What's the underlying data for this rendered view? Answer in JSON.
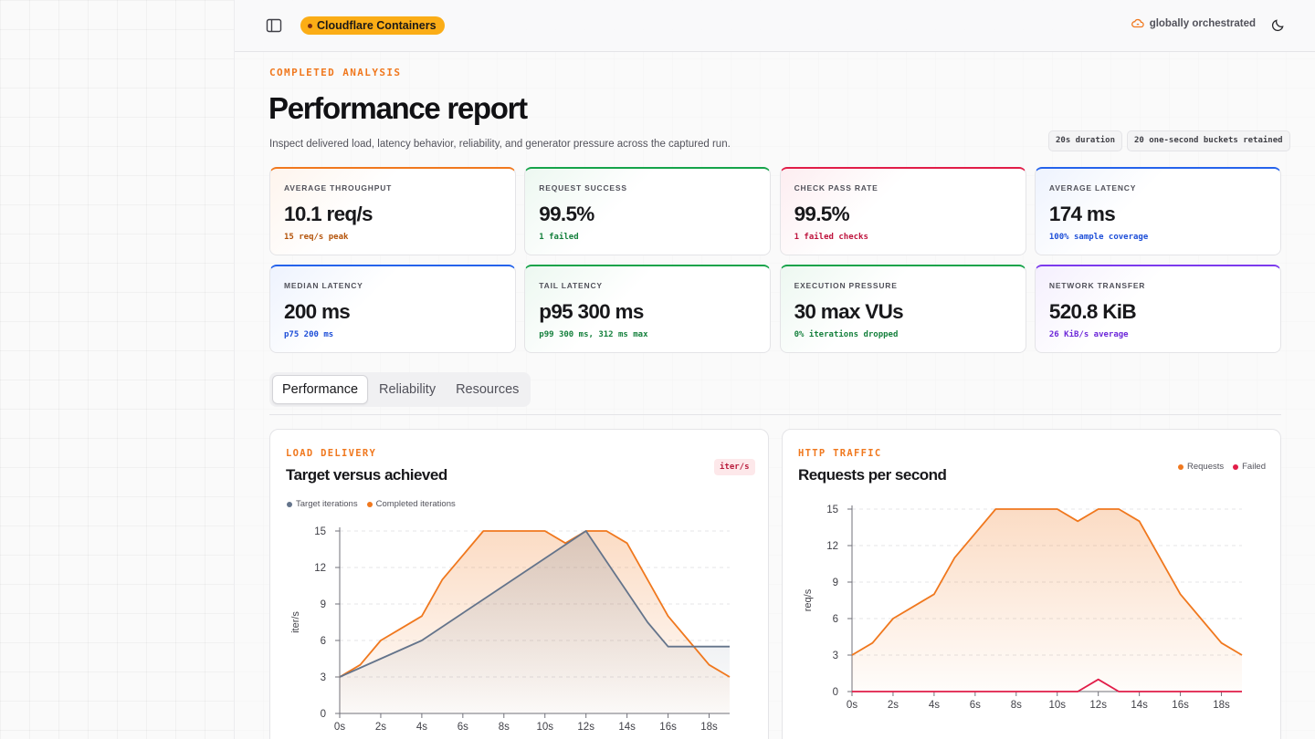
{
  "header": {
    "brand": "Cloudflare Containers",
    "orchestration": "globally orchestrated"
  },
  "page": {
    "eyebrow": "COMPLETED ANALYSIS",
    "title": "Performance report",
    "subtitle": "Inspect delivered load, latency behavior, reliability, and generator pressure across the captured run.",
    "chips": [
      "20s duration",
      "20 one-second buckets retained"
    ]
  },
  "kpis": [
    {
      "label": "AVERAGE THROUGHPUT",
      "value": "10.1 req/s",
      "sub": "15 req/s peak",
      "accent": "#f0781e",
      "sub_color": "#b45309"
    },
    {
      "label": "REQUEST SUCCESS",
      "value": "99.5%",
      "sub": "1 failed",
      "accent": "#16a34a",
      "sub_color": "#15803d"
    },
    {
      "label": "CHECK PASS RATE",
      "value": "99.5%",
      "sub": "1 failed checks",
      "accent": "#e11d48",
      "sub_color": "#be123c"
    },
    {
      "label": "AVERAGE LATENCY",
      "value": "174 ms",
      "sub": "100% sample coverage",
      "accent": "#2563eb",
      "sub_color": "#1d4ed8"
    },
    {
      "label": "MEDIAN LATENCY",
      "value": "200 ms",
      "sub": "p75 200 ms",
      "accent": "#2563eb",
      "sub_color": "#1d4ed8"
    },
    {
      "label": "TAIL LATENCY",
      "value": "p95 300 ms",
      "sub": "p99 300 ms, 312 ms max",
      "accent": "#16a34a",
      "sub_color": "#15803d"
    },
    {
      "label": "EXECUTION PRESSURE",
      "value": "30 max VUs",
      "sub": "0% iterations dropped",
      "accent": "#16a34a",
      "sub_color": "#15803d"
    },
    {
      "label": "NETWORK TRANSFER",
      "value": "520.8 KiB",
      "sub": "26 KiB/s average",
      "accent": "#7c3aed",
      "sub_color": "#6d28d9"
    }
  ],
  "tabs": [
    {
      "label": "Performance",
      "active": true
    },
    {
      "label": "Reliability",
      "active": false
    },
    {
      "label": "Resources",
      "active": false
    }
  ],
  "cards": {
    "load": {
      "eyebrow": "LOAD DELIVERY",
      "title": "Target versus achieved",
      "unit_chip": "iter/s"
    },
    "http": {
      "eyebrow": "HTTP TRAFFIC",
      "title": "Requests per second"
    }
  },
  "chart_data": [
    {
      "type": "area",
      "title": "Target versus achieved",
      "xlabel": "",
      "ylabel": "iter/s",
      "x": [
        0,
        1,
        2,
        3,
        4,
        5,
        6,
        7,
        8,
        9,
        10,
        11,
        12,
        13,
        14,
        15,
        16,
        17,
        18,
        19
      ],
      "xticks": [
        "0s",
        "2s",
        "4s",
        "6s",
        "8s",
        "10s",
        "12s",
        "14s",
        "16s",
        "18s"
      ],
      "yticks": [
        0,
        3,
        6,
        9,
        12,
        15
      ],
      "xlim": [
        0,
        19
      ],
      "ylim": [
        0,
        16
      ],
      "series": [
        {
          "name": "Target iterations",
          "color": "#64748b",
          "values": [
            3,
            3.75,
            4.5,
            5.25,
            6,
            7.125,
            8.25,
            9.375,
            10.5,
            11.625,
            12.75,
            13.875,
            15,
            12.5,
            10,
            7.5,
            5.5,
            5.5,
            5.5,
            5.5
          ]
        },
        {
          "name": "Completed iterations",
          "color": "#f0781e",
          "values": [
            3,
            4,
            6,
            7,
            8,
            11,
            13,
            15,
            15,
            15,
            15,
            14,
            15,
            15,
            14,
            11,
            8,
            6,
            4,
            3
          ]
        }
      ],
      "grid": true,
      "legend": "top-left"
    },
    {
      "type": "area",
      "title": "Requests per second",
      "xlabel": "",
      "ylabel": "req/s",
      "x": [
        0,
        1,
        2,
        3,
        4,
        5,
        6,
        7,
        8,
        9,
        10,
        11,
        12,
        13,
        14,
        15,
        16,
        17,
        18,
        19
      ],
      "xticks": [
        "0s",
        "2s",
        "4s",
        "6s",
        "8s",
        "10s",
        "12s",
        "14s",
        "16s",
        "18s"
      ],
      "yticks": [
        0,
        3,
        6,
        9,
        12,
        15
      ],
      "xlim": [
        0,
        19
      ],
      "ylim": [
        0,
        16
      ],
      "series": [
        {
          "name": "Requests",
          "color": "#f0781e",
          "values": [
            3,
            4,
            6,
            7,
            8,
            11,
            13,
            15,
            15,
            15,
            15,
            14,
            15,
            15,
            14,
            11,
            8,
            6,
            4,
            3
          ]
        },
        {
          "name": "Failed",
          "color": "#e11d48",
          "values": [
            0,
            0,
            0,
            0,
            0,
            0,
            0,
            0,
            0,
            0,
            0,
            0,
            1,
            0,
            0,
            0,
            0,
            0,
            0,
            0
          ]
        }
      ],
      "grid": true,
      "legend": "top-right"
    }
  ]
}
